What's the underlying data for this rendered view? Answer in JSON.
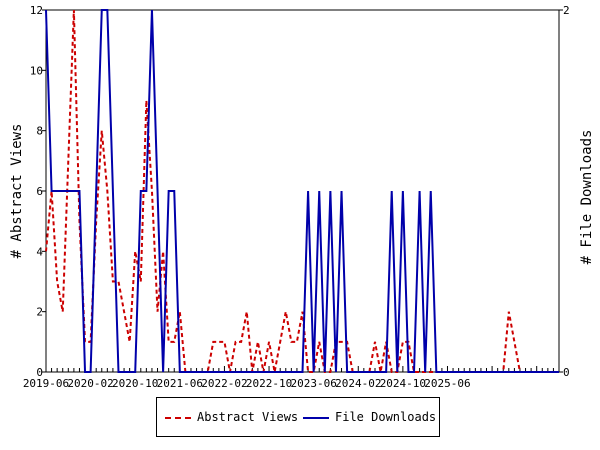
{
  "chart_data": {
    "type": "line",
    "x_tick_labels": [
      "2019-06",
      "2020-02",
      "2020-10",
      "2021-06",
      "2022-02",
      "2022-10",
      "2023-06",
      "2024-02",
      "2024-10",
      "2025-06"
    ],
    "ylabel": "# Abstract Views",
    "ylabel_right": "# File Downloads",
    "ylim": [
      0,
      12
    ],
    "yticks": [
      0,
      2,
      4,
      6,
      8,
      10,
      12
    ],
    "ylim_right": [
      0,
      2
    ],
    "yticks_right": [
      0,
      2
    ],
    "legend_position": "bottom",
    "series": [
      {
        "name": "Abstract Views",
        "axis": "left",
        "color": "#cc0000",
        "style": "dashed",
        "values": [
          4,
          6,
          3,
          2,
          7,
          12,
          5,
          1,
          1,
          5,
          8,
          6,
          3,
          3,
          2,
          1,
          4,
          3,
          9,
          6,
          2,
          4,
          1,
          1,
          2,
          0,
          0,
          0,
          0,
          0,
          1,
          1,
          1,
          0,
          1,
          1,
          2,
          0,
          1,
          0,
          1,
          0,
          1,
          2,
          1,
          1,
          2,
          0,
          0,
          1,
          0,
          0,
          1,
          1,
          1,
          0,
          0,
          0,
          0,
          1,
          0,
          1,
          0,
          0,
          1,
          1,
          0,
          0,
          0,
          0,
          0,
          0,
          0,
          0,
          0,
          0,
          0,
          0,
          0,
          0,
          0,
          0,
          0,
          2,
          1,
          0,
          0,
          0,
          0,
          0,
          0,
          0,
          0
        ]
      },
      {
        "name": "File Downloads",
        "axis": "right",
        "color": "#0000aa",
        "style": "solid",
        "values": [
          2,
          1,
          1,
          1,
          1,
          1,
          1,
          0,
          0,
          1,
          2,
          2,
          1,
          0,
          0,
          0,
          0,
          1,
          1,
          2,
          1,
          0,
          1,
          1,
          0,
          0,
          0,
          0,
          0,
          0,
          0,
          0,
          0,
          0,
          0,
          0,
          0,
          0,
          0,
          0,
          0,
          0,
          0,
          0,
          0,
          0,
          0,
          1,
          0,
          1,
          0,
          1,
          0,
          1,
          0,
          0,
          0,
          0,
          0,
          0,
          0,
          0,
          1,
          0,
          1,
          0,
          0,
          1,
          0,
          1,
          0,
          0,
          0,
          0,
          0,
          0,
          0,
          0,
          0,
          0,
          0,
          0,
          0,
          0,
          0,
          0,
          0,
          0,
          0,
          0,
          0,
          0,
          0
        ]
      }
    ]
  }
}
